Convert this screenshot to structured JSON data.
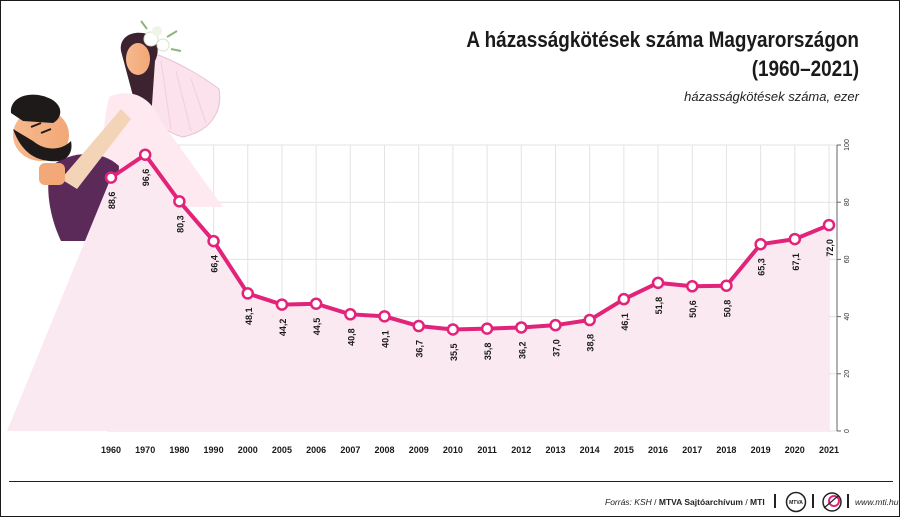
{
  "title": "A házasságkötések száma Magyarországon (1960–2021)",
  "subtitle": "házasságkötések száma, ezer",
  "colors": {
    "line": "#e2237a",
    "area": "#fbe9f2",
    "grid": "#e3e3e3",
    "marker_fill": "#ffffff",
    "text": "#1a1a1a"
  },
  "chart_data": {
    "type": "line",
    "categories": [
      "1960",
      "1970",
      "1980",
      "1990",
      "2000",
      "2005",
      "2006",
      "2007",
      "2008",
      "2009",
      "2010",
      "2011",
      "2012",
      "2013",
      "2014",
      "2015",
      "2016",
      "2017",
      "2018",
      "2019",
      "2020",
      "2021"
    ],
    "values": [
      88.6,
      96.6,
      80.3,
      66.4,
      48.1,
      44.2,
      44.5,
      40.8,
      40.1,
      36.7,
      35.5,
      35.8,
      36.2,
      37.0,
      38.8,
      46.1,
      51.8,
      50.6,
      50.8,
      65.3,
      67.1,
      72.0
    ],
    "value_labels": [
      "88,6",
      "96,6",
      "80,3",
      "66,4",
      "48,1",
      "44,2",
      "44,5",
      "40,8",
      "40,1",
      "36,7",
      "35,5",
      "35,8",
      "36,2",
      "37,0",
      "38,8",
      "46,1",
      "51,8",
      "50,6",
      "50,8",
      "65,3",
      "67,1",
      "72,0"
    ],
    "y_ticks": [
      0,
      20,
      40,
      60,
      80,
      100
    ],
    "ylim": [
      0,
      100
    ],
    "grid": true,
    "y_axis_side": "right"
  },
  "footer": {
    "source_label": "Forrás: KSH",
    "credit1": "MTVA Sajtóarchívum",
    "credit2": "MTI",
    "logo_mtva": "mtva-logo",
    "logo_mti": "mti-logo",
    "website": "www.mti.hu"
  }
}
